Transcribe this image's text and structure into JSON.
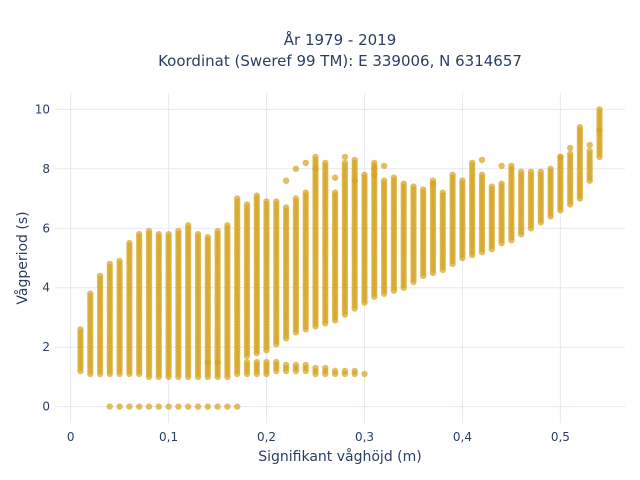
{
  "chart_data": {
    "type": "scatter",
    "title_line1": "År 1979 - 2019",
    "title_line2": "Koordinat (Sweref 99 TM): E 339006, N 6314657",
    "xlabel": "Signifikant våghöjd (m)",
    "ylabel": "Vågperiod (s)",
    "xlim": [
      -0.016,
      0.566
    ],
    "ylim": [
      -0.55,
      10.55
    ],
    "x_ticks": [
      0,
      0.1,
      0.2,
      0.3,
      0.4,
      0.5
    ],
    "x_tick_labels": [
      "0",
      "0,1",
      "0,2",
      "0,3",
      "0,4",
      "0,5"
    ],
    "y_ticks": [
      0,
      2,
      4,
      6,
      8,
      10
    ],
    "y_tick_labels": [
      "0",
      "2",
      "4",
      "6",
      "8",
      "10"
    ],
    "grid": true,
    "marker_color": "#d4a21f",
    "x_step": 0.01,
    "main_band": {
      "x": [
        0.01,
        0.02,
        0.03,
        0.04,
        0.05,
        0.06,
        0.07,
        0.08,
        0.09,
        0.1,
        0.11,
        0.12,
        0.13,
        0.14,
        0.15,
        0.16,
        0.17,
        0.18,
        0.19,
        0.2,
        0.21,
        0.22,
        0.23,
        0.24,
        0.25,
        0.26,
        0.27,
        0.28,
        0.29,
        0.3,
        0.31,
        0.32,
        0.33,
        0.34,
        0.35,
        0.36,
        0.37,
        0.38,
        0.39,
        0.4,
        0.41,
        0.42,
        0.43,
        0.44,
        0.45,
        0.46,
        0.47,
        0.48,
        0.49,
        0.5,
        0.51,
        0.52,
        0.53,
        0.54
      ],
      "ymin": [
        1.2,
        1.1,
        1.1,
        1.1,
        1.1,
        1.1,
        1.1,
        1.0,
        1.0,
        1.0,
        1.0,
        1.0,
        1.0,
        1.5,
        1.5,
        1.6,
        1.6,
        1.7,
        1.8,
        1.9,
        2.1,
        2.3,
        2.5,
        2.6,
        2.7,
        2.8,
        2.9,
        3.1,
        3.3,
        3.5,
        3.7,
        3.8,
        3.9,
        4.0,
        4.2,
        4.4,
        4.5,
        4.6,
        4.8,
        5.0,
        5.1,
        5.2,
        5.3,
        5.5,
        5.6,
        5.8,
        6.0,
        6.2,
        6.4,
        6.6,
        6.8,
        7.0,
        7.6,
        8.4
      ],
      "ymax": [
        2.6,
        3.8,
        4.4,
        4.8,
        4.9,
        5.5,
        5.8,
        5.9,
        5.8,
        5.8,
        5.9,
        6.1,
        5.8,
        5.7,
        5.9,
        6.1,
        7.0,
        6.8,
        7.1,
        6.9,
        6.9,
        6.7,
        7.0,
        7.2,
        8.4,
        8.2,
        7.2,
        8.2,
        8.3,
        7.8,
        8.2,
        7.6,
        7.7,
        7.5,
        7.4,
        7.3,
        7.6,
        7.2,
        7.8,
        7.6,
        8.2,
        7.8,
        7.4,
        7.5,
        8.1,
        7.9,
        7.9,
        7.9,
        8.0,
        8.4,
        8.5,
        9.3,
        8.6,
        10.0
      ],
      "outliers": [
        [
          0.22,
          7.6
        ],
        [
          0.23,
          8.0
        ],
        [
          0.24,
          8.2
        ],
        [
          0.25,
          8.0
        ],
        [
          0.27,
          7.7
        ],
        [
          0.28,
          8.4
        ],
        [
          0.29,
          7.6
        ],
        [
          0.31,
          8.0
        ],
        [
          0.31,
          7.8
        ],
        [
          0.32,
          8.1
        ],
        [
          0.37,
          7.5
        ],
        [
          0.42,
          8.3
        ],
        [
          0.44,
          8.1
        ],
        [
          0.5,
          8.4
        ],
        [
          0.51,
          8.7
        ],
        [
          0.52,
          9.4
        ],
        [
          0.53,
          8.8
        ],
        [
          0.54,
          9.3
        ]
      ]
    },
    "low_branch": {
      "x": [
        0.14,
        0.15,
        0.16,
        0.17,
        0.18,
        0.19,
        0.2,
        0.21,
        0.22,
        0.23,
        0.24,
        0.25,
        0.26,
        0.27,
        0.28,
        0.29,
        0.3
      ],
      "ymin": [
        1.0,
        1.0,
        1.0,
        1.1,
        1.1,
        1.1,
        1.1,
        1.2,
        1.2,
        1.2,
        1.2,
        1.1,
        1.1,
        1.1,
        1.1,
        1.1,
        1.1
      ],
      "ymax": [
        1.5,
        1.5,
        1.5,
        1.5,
        1.5,
        1.5,
        1.5,
        1.5,
        1.4,
        1.4,
        1.4,
        1.3,
        1.3,
        1.2,
        1.2,
        1.2,
        1.1
      ]
    },
    "zero_row": {
      "x": [
        0.04,
        0.05,
        0.06,
        0.07,
        0.08,
        0.09,
        0.1,
        0.11,
        0.12,
        0.13,
        0.14,
        0.15,
        0.16,
        0.17
      ],
      "y": 0
    }
  }
}
